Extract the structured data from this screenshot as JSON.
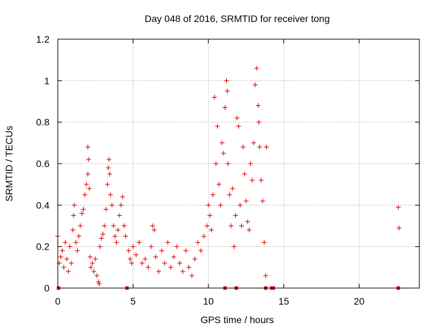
{
  "chart_data": {
    "type": "scatter",
    "title": "Day 048 of 2016, SRMTID for receiver tong",
    "xlabel": "GPS time / hours",
    "ylabel": "SRMTID / TECUs",
    "xlim": [
      0,
      24
    ],
    "ylim": [
      0,
      1.2
    ],
    "xticks": [
      0,
      5,
      10,
      15,
      20
    ],
    "xtick_labels": [
      "0",
      "5",
      "10",
      "15",
      "20"
    ],
    "yticks": [
      0,
      0.2,
      0.4,
      0.6,
      0.8,
      1.0,
      1.2
    ],
    "ytick_labels": [
      "0",
      "0.2",
      "0.4",
      "0.6",
      "0.8",
      "1",
      "1.2"
    ],
    "grid": true,
    "marker": "+",
    "series_color": "#e00000",
    "zero_markers_x": [
      0.05,
      4.6,
      11.1,
      11.85,
      13.8,
      14.2,
      14.3,
      22.6
    ],
    "series": [
      {
        "name": "SRMTID",
        "points": [
          [
            0.0,
            0.25
          ],
          [
            0.1,
            0.12
          ],
          [
            0.2,
            0.15
          ],
          [
            0.3,
            0.18
          ],
          [
            0.4,
            0.1
          ],
          [
            0.5,
            0.22
          ],
          [
            0.6,
            0.14
          ],
          [
            0.7,
            0.08
          ],
          [
            0.8,
            0.2
          ],
          [
            0.9,
            0.12
          ],
          [
            1.0,
            0.28
          ],
          [
            1.05,
            0.35
          ],
          [
            1.1,
            0.4
          ],
          [
            1.2,
            0.22
          ],
          [
            1.3,
            0.18
          ],
          [
            1.4,
            0.25
          ],
          [
            1.5,
            0.3
          ],
          [
            1.6,
            0.36
          ],
          [
            1.7,
            0.38
          ],
          [
            1.8,
            0.45
          ],
          [
            1.9,
            0.5
          ],
          [
            2.0,
            0.55
          ],
          [
            2.0,
            0.68
          ],
          [
            2.05,
            0.62
          ],
          [
            2.1,
            0.48
          ],
          [
            2.15,
            0.15
          ],
          [
            2.2,
            0.1
          ],
          [
            2.3,
            0.12
          ],
          [
            2.4,
            0.08
          ],
          [
            2.5,
            0.14
          ],
          [
            2.6,
            0.06
          ],
          [
            2.7,
            0.03
          ],
          [
            2.75,
            0.02
          ],
          [
            2.8,
            0.2
          ],
          [
            2.9,
            0.24
          ],
          [
            3.0,
            0.26
          ],
          [
            3.1,
            0.3
          ],
          [
            3.2,
            0.38
          ],
          [
            3.3,
            0.5
          ],
          [
            3.35,
            0.58
          ],
          [
            3.4,
            0.62
          ],
          [
            3.45,
            0.55
          ],
          [
            3.5,
            0.45
          ],
          [
            3.6,
            0.4
          ],
          [
            3.7,
            0.3
          ],
          [
            3.8,
            0.25
          ],
          [
            3.9,
            0.22
          ],
          [
            4.0,
            0.28
          ],
          [
            4.1,
            0.35
          ],
          [
            4.2,
            0.4
          ],
          [
            4.3,
            0.44
          ],
          [
            4.4,
            0.3
          ],
          [
            4.5,
            0.25
          ],
          [
            4.7,
            0.18
          ],
          [
            4.8,
            0.14
          ],
          [
            4.9,
            0.12
          ],
          [
            5.0,
            0.2
          ],
          [
            5.2,
            0.16
          ],
          [
            5.4,
            0.22
          ],
          [
            5.6,
            0.12
          ],
          [
            5.8,
            0.14
          ],
          [
            6.0,
            0.1
          ],
          [
            6.2,
            0.2
          ],
          [
            6.3,
            0.3
          ],
          [
            6.4,
            0.28
          ],
          [
            6.5,
            0.15
          ],
          [
            6.7,
            0.08
          ],
          [
            6.9,
            0.18
          ],
          [
            7.1,
            0.12
          ],
          [
            7.3,
            0.22
          ],
          [
            7.5,
            0.1
          ],
          [
            7.7,
            0.15
          ],
          [
            7.9,
            0.2
          ],
          [
            8.1,
            0.12
          ],
          [
            8.3,
            0.08
          ],
          [
            8.5,
            0.18
          ],
          [
            8.7,
            0.1
          ],
          [
            8.9,
            0.06
          ],
          [
            9.1,
            0.14
          ],
          [
            9.3,
            0.22
          ],
          [
            9.5,
            0.18
          ],
          [
            9.7,
            0.25
          ],
          [
            9.9,
            0.3
          ],
          [
            10.0,
            0.4
          ],
          [
            10.1,
            0.35
          ],
          [
            10.2,
            0.28
          ],
          [
            10.3,
            0.45
          ],
          [
            10.4,
            0.92
          ],
          [
            10.5,
            0.6
          ],
          [
            10.6,
            0.78
          ],
          [
            10.7,
            0.5
          ],
          [
            10.8,
            0.4
          ],
          [
            10.9,
            0.7
          ],
          [
            11.0,
            0.65
          ],
          [
            11.1,
            0.87
          ],
          [
            11.2,
            1.0
          ],
          [
            11.25,
            0.95
          ],
          [
            11.3,
            0.6
          ],
          [
            11.4,
            0.45
          ],
          [
            11.5,
            0.3
          ],
          [
            11.6,
            0.48
          ],
          [
            11.7,
            0.2
          ],
          [
            11.8,
            0.35
          ],
          [
            11.9,
            0.82
          ],
          [
            12.0,
            0.78
          ],
          [
            12.1,
            0.4
          ],
          [
            12.2,
            0.3
          ],
          [
            12.3,
            0.68
          ],
          [
            12.4,
            0.55
          ],
          [
            12.5,
            0.42
          ],
          [
            12.6,
            0.32
          ],
          [
            12.7,
            0.28
          ],
          [
            12.8,
            0.6
          ],
          [
            12.9,
            0.52
          ],
          [
            13.0,
            0.7
          ],
          [
            13.1,
            0.98
          ],
          [
            13.2,
            1.06
          ],
          [
            13.3,
            0.88
          ],
          [
            13.35,
            0.8
          ],
          [
            13.4,
            0.68
          ],
          [
            13.5,
            0.52
          ],
          [
            13.6,
            0.42
          ],
          [
            13.7,
            0.22
          ],
          [
            13.8,
            0.06
          ],
          [
            13.85,
            0.68
          ],
          [
            22.6,
            0.39
          ],
          [
            22.65,
            0.29
          ]
        ]
      }
    ]
  }
}
